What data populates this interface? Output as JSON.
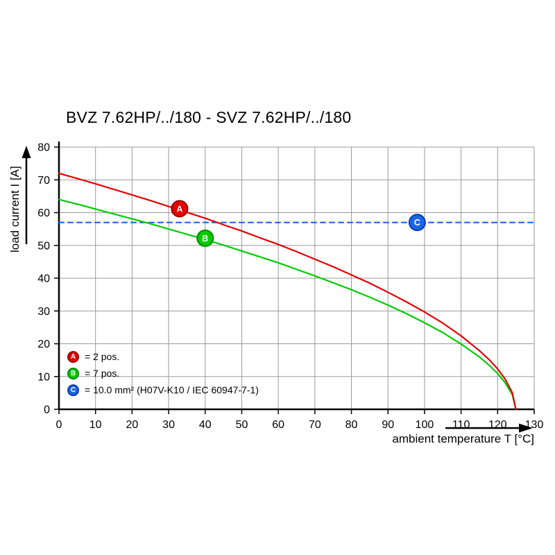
{
  "title": "BVZ 7.62HP/../180 - SVZ 7.62HP/../180",
  "chart_data": {
    "type": "line",
    "title": "BVZ 7.62HP/../180 - SVZ 7.62HP/../180",
    "xlabel": "ambient temperature T [°C]",
    "ylabel": "load current I [A]",
    "xlim": [
      0,
      130
    ],
    "ylim": [
      0,
      80
    ],
    "xtick_step": 10,
    "ytick_step": 10,
    "grid": true,
    "series": [
      {
        "name": "2 pos.",
        "color": "#e60000",
        "style": "solid",
        "x": [
          0,
          5,
          10,
          15,
          20,
          25,
          30,
          35,
          40,
          45,
          50,
          55,
          60,
          65,
          70,
          75,
          80,
          85,
          90,
          95,
          100,
          105,
          110,
          115,
          118,
          120,
          122,
          124,
          125
        ],
        "y": [
          72,
          70.4,
          68.8,
          67.1,
          65.4,
          63.7,
          61.9,
          60.1,
          58.3,
          56.3,
          54.4,
          52.3,
          50.3,
          48.1,
          45.8,
          43.5,
          41,
          38.5,
          35.7,
          32.8,
          29.7,
          26.3,
          22.4,
          17.9,
          14.8,
          12.3,
          9.3,
          5.1,
          0
        ]
      },
      {
        "name": "7 pos.",
        "color": "#00cc00",
        "style": "solid",
        "x": [
          0,
          5,
          10,
          15,
          20,
          25,
          30,
          35,
          40,
          45,
          50,
          55,
          60,
          65,
          70,
          75,
          80,
          85,
          90,
          95,
          100,
          105,
          110,
          115,
          118,
          120,
          122,
          124,
          125
        ],
        "y": [
          64,
          62.6,
          61.1,
          59.6,
          58.1,
          56.6,
          55,
          53.4,
          51.8,
          50.1,
          48.3,
          46.5,
          44.7,
          42.7,
          40.7,
          38.6,
          36.5,
          34.2,
          31.8,
          29.2,
          26.4,
          23.4,
          19.9,
          16,
          13.1,
          10.9,
          8.2,
          4.5,
          0
        ]
      },
      {
        "name": "10.0 mm² (H07V-K10 / IEC 60947-7-1)",
        "color": "#1a66e8",
        "style": "dashed",
        "x": [
          0,
          130
        ],
        "y": [
          57,
          57
        ]
      }
    ],
    "markers": [
      {
        "letter": "A",
        "x": 33,
        "y": 61.2,
        "fill": "#e60000",
        "ring": "#9b0000"
      },
      {
        "letter": "B",
        "x": 40,
        "y": 52.2,
        "fill": "#00cc00",
        "ring": "#008a00"
      },
      {
        "letter": "C",
        "x": 98,
        "y": 57,
        "fill": "#1a66e8",
        "ring": "#0b3cb0"
      }
    ],
    "legend": [
      {
        "letter": "A",
        "color": "#e60000",
        "ring": "#9b0000",
        "label": "= 2 pos."
      },
      {
        "letter": "B",
        "color": "#00cc00",
        "ring": "#008a00",
        "label": "= 7 pos."
      },
      {
        "letter": "C",
        "color": "#1a66e8",
        "ring": "#0b3cb0",
        "label": "= 10.0 mm² (H07V-K10 / IEC 60947-7-1)"
      }
    ],
    "grid_color": "#999999",
    "axis_color": "#000000"
  }
}
